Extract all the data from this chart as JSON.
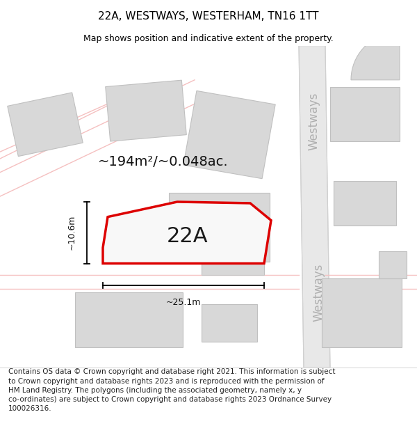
{
  "title": "22A, WESTWAYS, WESTERHAM, TN16 1TT",
  "subtitle": "Map shows position and indicative extent of the property.",
  "footer": "Contains OS data © Crown copyright and database right 2021. This information is subject\nto Crown copyright and database rights 2023 and is reproduced with the permission of\nHM Land Registry. The polygons (including the associated geometry, namely x, y\nco-ordinates) are subject to Crown copyright and database rights 2023 Ordnance Survey\n100026316.",
  "area_label": "~194m²/~0.048ac.",
  "plot_label": "22A",
  "dim_width": "~25.1m",
  "dim_height": "~10.6m",
  "background_color": "#ffffff",
  "road_fill": "#e8e8e8",
  "road_edge": "#d0d0d0",
  "road_line_color": "#f5c0c0",
  "building_fill": "#d8d8d8",
  "building_edge": "#c0c0c0",
  "plot_color": "#dd0000",
  "plot_fill": "#f8f8f8",
  "road_label_color": "#b0b0b0",
  "title_fontsize": 11,
  "subtitle_fontsize": 9,
  "footer_fontsize": 7.5,
  "label_fontsize": 14,
  "area_fontsize": 14,
  "plot_fontsize": 22
}
